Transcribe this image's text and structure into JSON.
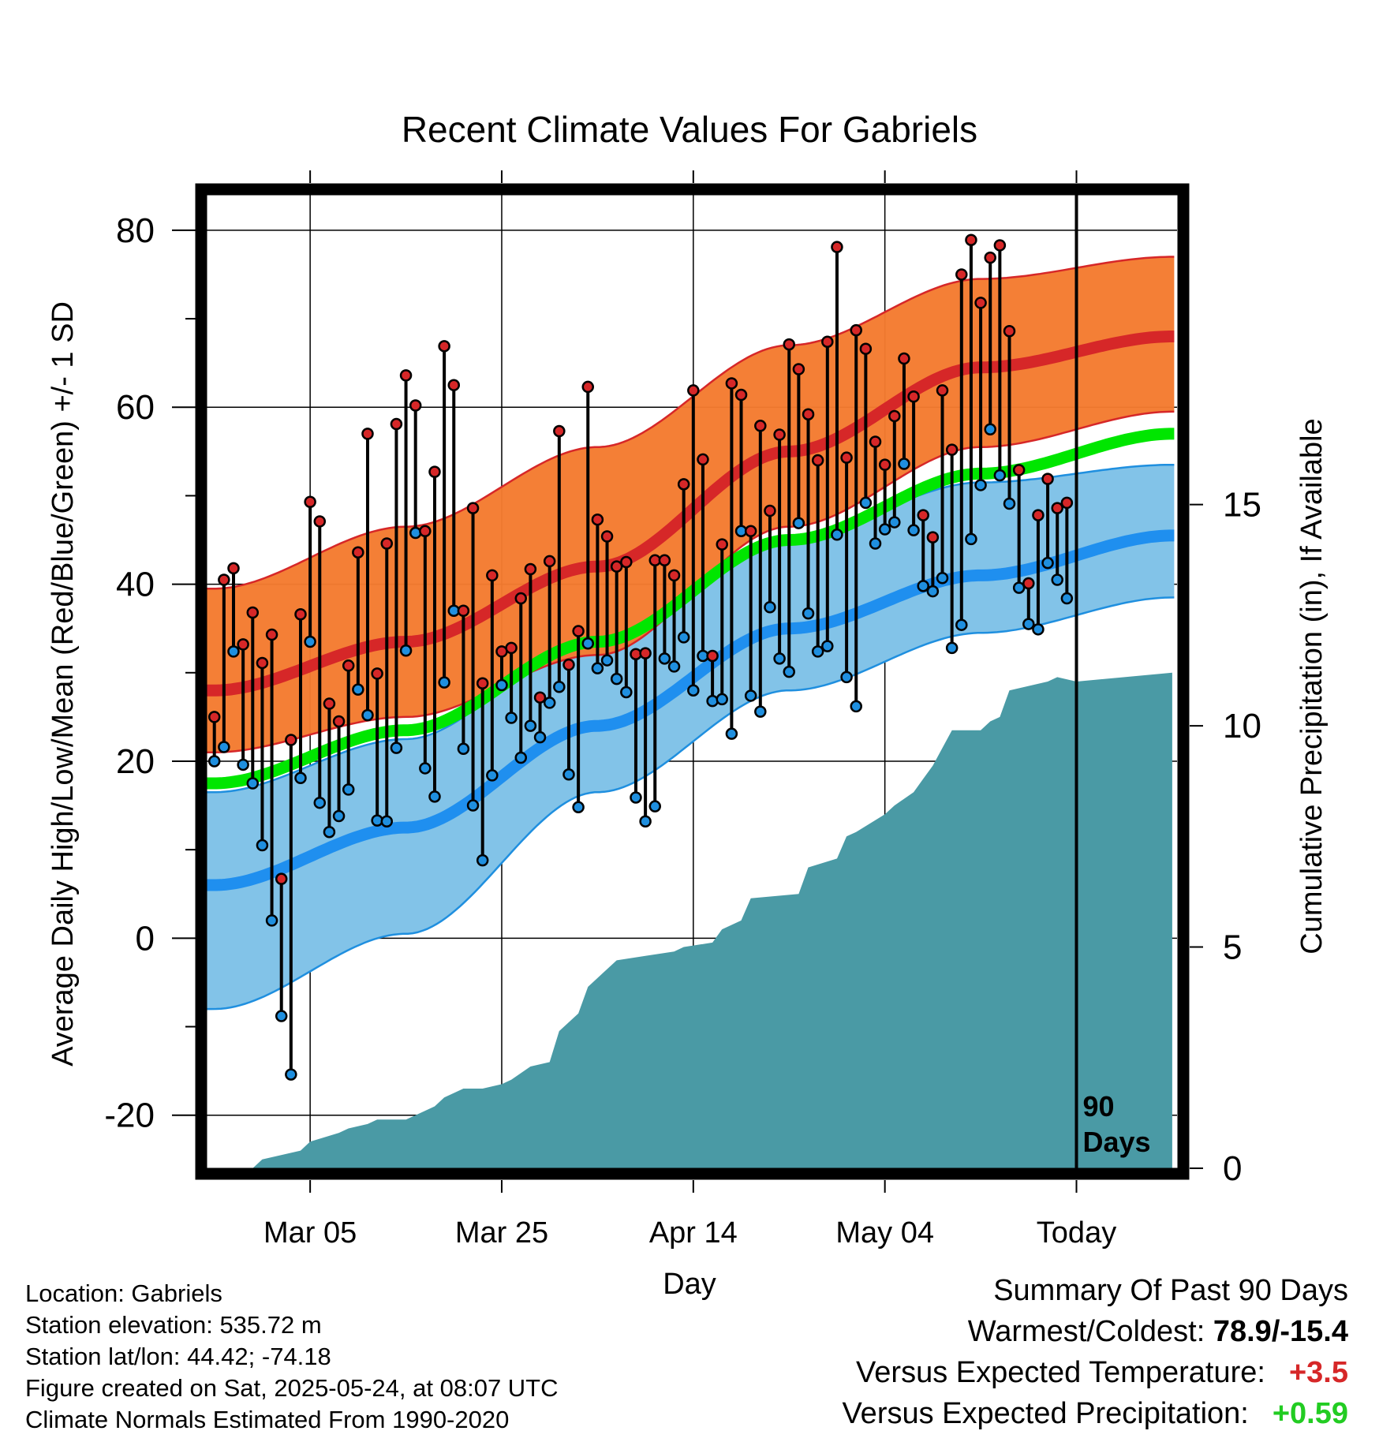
{
  "chart_data": {
    "type": "line",
    "title": "Recent Climate Values For Gabriels",
    "xlabel": "Day",
    "ylabel": "Average Daily High/Low/Mean (Red/Blue/Green) +/- 1 SD",
    "y2label": "Cumulative Precipitation (in), If Available",
    "ylim": [
      -26,
      84
    ],
    "y2lim": [
      0,
      22
    ],
    "y_ticks": [
      "80",
      "60",
      "40",
      "20",
      "0",
      "-20"
    ],
    "y_tick_values": [
      80,
      60,
      40,
      20,
      0,
      -20
    ],
    "y2_ticks": [
      "15",
      "10",
      "5",
      "0"
    ],
    "y2_tick_values": [
      15,
      10,
      5,
      0
    ],
    "x_ticks": [
      "Mar 05",
      "Mar 25",
      "Apr 14",
      "May 04",
      "Today"
    ],
    "x_tick_days": [
      10,
      30,
      50,
      70,
      90
    ],
    "xlim": [
      -0.8,
      100.5
    ],
    "marker_label": "90 Days",
    "grid": true,
    "normals": {
      "days": [
        0,
        20,
        40,
        60,
        80,
        100
      ],
      "high_mean": [
        28,
        33.5,
        42,
        55,
        64.5,
        68
      ],
      "high_upper": [
        39.5,
        46.5,
        55.5,
        67,
        74.5,
        77
      ],
      "high_lower": [
        21,
        25,
        32,
        46.5,
        55.5,
        59.5
      ],
      "low_mean": [
        6,
        12.5,
        24,
        35,
        41,
        45.5
      ],
      "low_upper": [
        16.5,
        22.5,
        34,
        45.5,
        51.5,
        53.5
      ],
      "low_lower": [
        -8,
        0.5,
        16.5,
        28,
        34.5,
        38.5
      ],
      "avg_mean": [
        17.5,
        23.5,
        33.5,
        45,
        52.5,
        57
      ]
    },
    "series": [
      {
        "name": "Daily High",
        "color": "#d62728",
        "values": [
          25,
          40.5,
          41.8,
          33.2,
          36.8,
          31.1,
          34.3,
          6.7,
          22.4,
          36.6,
          49.3,
          47.1,
          26.5,
          24.5,
          30.8,
          43.6,
          57,
          29.9,
          44.6,
          58.1,
          63.6,
          60.2,
          46,
          52.7,
          66.9,
          62.5,
          37,
          48.6,
          28.8,
          41,
          32.4,
          32.8,
          38.4,
          41.7,
          27.2,
          42.6,
          57.3,
          30.9,
          34.7,
          62.3,
          47.3,
          45.4,
          42,
          42.5,
          32.1,
          32.2,
          42.7,
          42.7,
          41,
          51.3,
          61.9,
          54.1,
          31.9,
          44.5,
          62.7,
          61.4,
          46,
          57.9,
          48.3,
          56.9,
          67.1,
          64.3,
          59.2,
          54,
          67.4,
          78.1,
          54.3,
          68.7,
          66.6,
          56.1,
          53.5,
          59,
          65.5,
          61.2,
          47.8,
          45.3,
          61.9,
          55.2,
          75,
          78.9,
          71.8,
          76.9,
          78.3,
          68.6,
          52.9,
          40.1,
          47.8,
          51.9,
          48.6,
          49.2
        ]
      },
      {
        "name": "Daily Low",
        "color": "#1f8fdf",
        "values": [
          20,
          21.6,
          32.4,
          19.6,
          17.5,
          10.5,
          2,
          -8.8,
          -15.4,
          18.1,
          33.5,
          15.3,
          12,
          13.8,
          16.8,
          28.1,
          25.2,
          13.3,
          13.2,
          21.5,
          32.5,
          45.8,
          19.2,
          16,
          28.9,
          37,
          21.4,
          15,
          8.8,
          18.4,
          28.6,
          24.9,
          20.4,
          24,
          22.7,
          26.6,
          28.4,
          18.5,
          14.8,
          33.3,
          30.5,
          31.4,
          29.3,
          27.8,
          15.9,
          13.2,
          14.9,
          31.6,
          30.7,
          34,
          28,
          31.9,
          26.8,
          27,
          23.1,
          46,
          27.4,
          25.6,
          37.4,
          31.6,
          30.1,
          46.9,
          36.7,
          32.4,
          33,
          45.6,
          29.5,
          26.2,
          49.2,
          44.6,
          46.2,
          47,
          53.6,
          46.1,
          39.8,
          39.2,
          40.7,
          32.8,
          35.4,
          45.1,
          51.2,
          57.5,
          52.3,
          49.1,
          39.6,
          35.5,
          34.9,
          42.4,
          40.5,
          38.4
        ]
      },
      {
        "name": "Cumulative Precipitation",
        "color": "#4a9aa5",
        "days": [
          0,
          4,
          5,
          9,
          10,
          13,
          14,
          16,
          17,
          20,
          21,
          23,
          24,
          26,
          28,
          30,
          31,
          33,
          35,
          36,
          38,
          39,
          41,
          42,
          45,
          48,
          49,
          52,
          53,
          55,
          56,
          61,
          62,
          65,
          66,
          67,
          70,
          71,
          73,
          74,
          75,
          77,
          80,
          81,
          82,
          83,
          87,
          88,
          90,
          100
        ],
        "values": [
          0,
          0,
          0.2,
          0.4,
          0.6,
          0.8,
          0.9,
          1.0,
          1.1,
          1.1,
          1.2,
          1.4,
          1.6,
          1.8,
          1.8,
          1.9,
          2.0,
          2.3,
          2.4,
          3.1,
          3.5,
          4.1,
          4.5,
          4.7,
          4.8,
          4.9,
          5.0,
          5.1,
          5.4,
          5.6,
          6.1,
          6.2,
          6.8,
          7.0,
          7.5,
          7.6,
          8.0,
          8.2,
          8.5,
          8.8,
          9.1,
          9.9,
          9.9,
          10.1,
          10.2,
          10.8,
          11.0,
          11.1,
          11.0,
          11.2
        ]
      }
    ]
  },
  "info": {
    "location": "Location: Gabriels",
    "elevation": "Station elevation: 535.72 m",
    "latlon": "Station lat/lon: 44.42; -74.18",
    "created": "Figure created on Sat, 2025-05-24, at 08:07 UTC",
    "normals": "Climate Normals Estimated From 1990-2020"
  },
  "summary": {
    "heading": "Summary Of Past 90 Days",
    "warmest_label": "Warmest/Coldest:",
    "warmest_value": "78.9/-15.4",
    "temp_label": "Versus Expected Temperature:",
    "temp_value": "+3.5",
    "temp_color": "#d62728",
    "precip_label": "Versus Expected Precipitation:",
    "precip_value": "+0.59",
    "precip_color": "#22cc22"
  }
}
